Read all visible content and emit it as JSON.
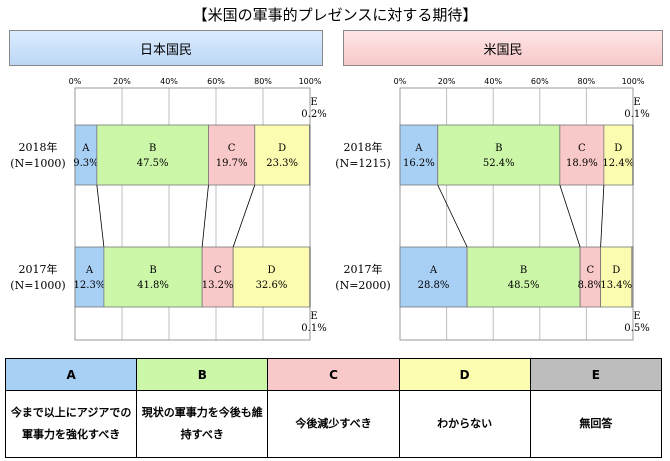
{
  "title": "【米国の軍事的プレゼンスに対する期待】",
  "panels": {
    "left_label": "日本国民",
    "right_label": "米国民"
  },
  "chart_data": [
    {
      "type": "bar",
      "stacked": true,
      "orientation": "horizontal",
      "title": "日本国民",
      "xlim": [
        0,
        100
      ],
      "x_ticks": [
        "0%",
        "20%",
        "40%",
        "60%",
        "80%",
        "100%"
      ],
      "categories": [
        {
          "year": "2018年",
          "n": "(N=1000)"
        },
        {
          "year": "2017年",
          "n": "(N=1000)"
        }
      ],
      "series": [
        {
          "name": "A",
          "values": [
            9.3,
            12.3
          ],
          "labels": [
            "9.3%",
            "12.3%"
          ]
        },
        {
          "name": "B",
          "values": [
            47.5,
            41.8
          ],
          "labels": [
            "47.5%",
            "41.8%"
          ]
        },
        {
          "name": "C",
          "values": [
            19.7,
            13.2
          ],
          "labels": [
            "19.7%",
            "13.2%"
          ]
        },
        {
          "name": "D",
          "values": [
            23.3,
            32.6
          ],
          "labels": [
            "23.3%",
            "32.6%"
          ]
        },
        {
          "name": "E",
          "values": [
            0.2,
            0.1
          ],
          "labels": [
            "0.2%",
            "0.1%"
          ]
        }
      ],
      "connector_lines": true
    },
    {
      "type": "bar",
      "stacked": true,
      "orientation": "horizontal",
      "title": "米国民",
      "xlim": [
        0,
        100
      ],
      "x_ticks": [
        "0%",
        "20%",
        "40%",
        "60%",
        "80%",
        "100%"
      ],
      "categories": [
        {
          "year": "2018年",
          "n": "(N=1215)"
        },
        {
          "year": "2017年",
          "n": "(N=2000)"
        }
      ],
      "series": [
        {
          "name": "A",
          "values": [
            16.2,
            28.8
          ],
          "labels": [
            "16.2%",
            "28.8%"
          ]
        },
        {
          "name": "B",
          "values": [
            52.4,
            48.5
          ],
          "labels": [
            "52.4%",
            "48.5%"
          ]
        },
        {
          "name": "C",
          "values": [
            18.9,
            8.8
          ],
          "labels": [
            "18.9%",
            "8.8%"
          ]
        },
        {
          "name": "D",
          "values": [
            12.4,
            13.4
          ],
          "labels": [
            "12.4%",
            "13.4%"
          ]
        },
        {
          "name": "E",
          "values": [
            0.1,
            0.5
          ],
          "labels": [
            "0.1%",
            "0.5%"
          ]
        }
      ],
      "connector_lines": true
    }
  ],
  "colors": {
    "A": "#a8d0f5",
    "B": "#ccf7a8",
    "C": "#f9c8c8",
    "D": "#fcfcb0",
    "E": "#bdbdbd"
  },
  "legend": [
    {
      "key": "A",
      "text": "今まで以上にアジアでの軍事力を強化すべき"
    },
    {
      "key": "B",
      "text": "現状の軍事力を今後も維持すべき"
    },
    {
      "key": "C",
      "text": "今後減少すべき"
    },
    {
      "key": "D",
      "text": "わからない"
    },
    {
      "key": "E",
      "text": "無回答"
    }
  ]
}
